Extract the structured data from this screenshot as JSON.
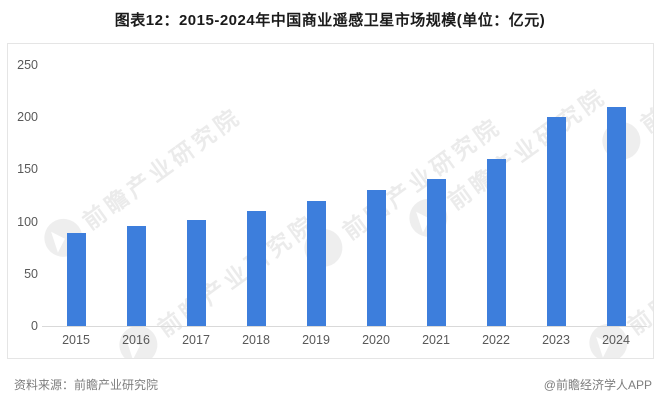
{
  "title": "图表12：2015-2024年中国商业遥感卫星市场规模(单位：亿元)",
  "footer": {
    "source_note": "资料来源：前瞻产业研究院",
    "credit": "@前瞻经济学人APP"
  },
  "watermark_text": "前瞻产业研究院",
  "colors": {
    "bar": "#3d7edc",
    "axis_text": "#595959",
    "axis_line": "#d9d9d9",
    "box_border": "#e5e5e5",
    "title_text": "#1a1a1a",
    "footer_text": "#7d7d7d",
    "watermark": "#ebebeb",
    "background": "#ffffff"
  },
  "chart_data": {
    "type": "bar",
    "title": "2015-2024年中国商业遥感卫星市场规模",
    "unit": "亿元",
    "categories": [
      "2015",
      "2016",
      "2017",
      "2018",
      "2019",
      "2020",
      "2021",
      "2022",
      "2023",
      "2024"
    ],
    "values": [
      89,
      96,
      102,
      110,
      120,
      130,
      141,
      160,
      200,
      210
    ],
    "xlabel": "",
    "ylabel": "",
    "ylim": [
      0,
      250
    ],
    "ytick_step": 50,
    "yticks": [
      0,
      50,
      100,
      150,
      200,
      250
    ],
    "grid": false,
    "legend": false,
    "bar_color": "#3d7edc"
  }
}
